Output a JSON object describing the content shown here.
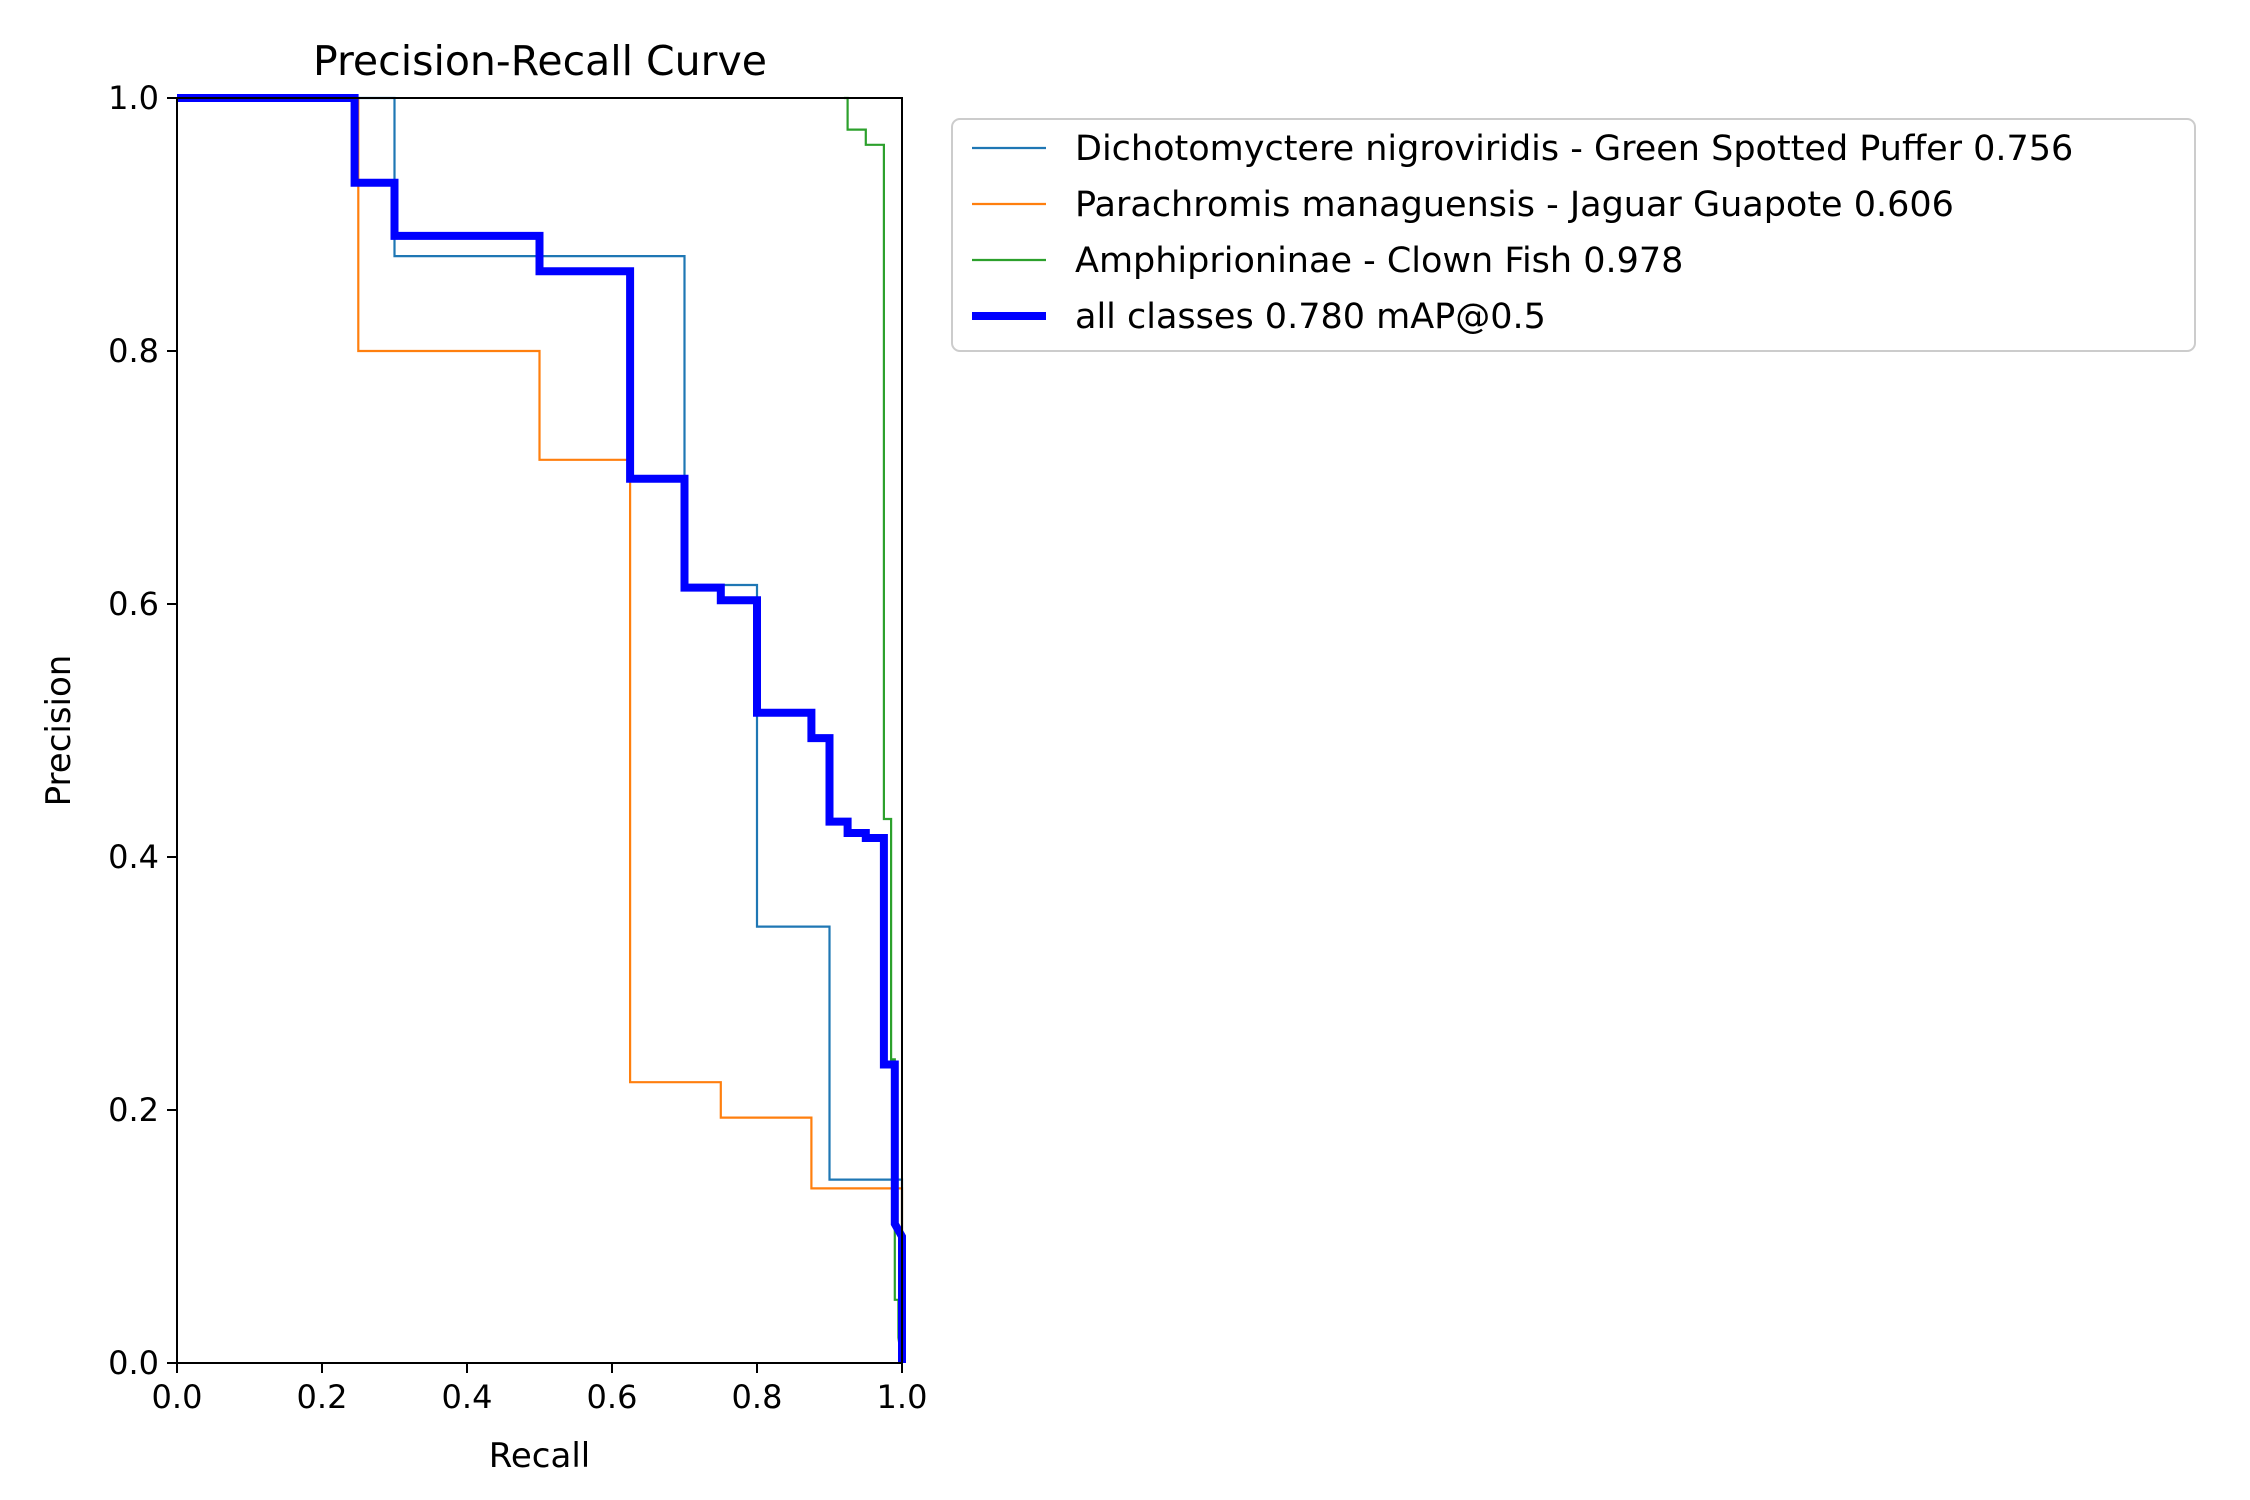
{
  "chart_data": {
    "type": "line",
    "title": "Precision-Recall Curve",
    "xlabel": "Recall",
    "ylabel": "Precision",
    "xlim": [
      0,
      1
    ],
    "ylim": [
      0,
      1
    ],
    "xticks": [
      "0.0",
      "0.2",
      "0.4",
      "0.6",
      "0.8",
      "1.0"
    ],
    "yticks": [
      "0.0",
      "0.2",
      "0.4",
      "0.6",
      "0.8",
      "1.0"
    ],
    "grid": false,
    "legend_position": "outside-right-top",
    "series": [
      {
        "name": "Dichotomyctere nigroviridis - Green Spotted Puffer 0.756",
        "color": "#1f77b4",
        "width": "thin",
        "x": [
          0,
          0.3,
          0.3,
          0.7,
          0.7,
          0.8,
          0.8,
          0.9,
          0.9,
          1.0,
          1.0
        ],
        "y": [
          1.0,
          1.0,
          0.875,
          0.875,
          0.615,
          0.615,
          0.345,
          0.345,
          0.145,
          0.145,
          0.0
        ]
      },
      {
        "name": "Parachromis managuensis - Jaguar Guapote 0.606",
        "color": "#ff7f0e",
        "width": "thin",
        "x": [
          0,
          0.25,
          0.25,
          0.5,
          0.5,
          0.625,
          0.625,
          0.75,
          0.75,
          0.875,
          0.875,
          1.0,
          1.0
        ],
        "y": [
          1.0,
          1.0,
          0.8,
          0.8,
          0.714,
          0.714,
          0.222,
          0.222,
          0.194,
          0.194,
          0.138,
          0.138,
          0.0
        ]
      },
      {
        "name": "Amphiprioninae - Clown Fish 0.978",
        "color": "#2ca02c",
        "width": "thin",
        "x": [
          0.92,
          0.925,
          0.925,
          0.95,
          0.95,
          0.975,
          0.975,
          0.985,
          0.985,
          0.99,
          0.99,
          0.995,
          0.995,
          1.0
        ],
        "y": [
          1.0,
          1.0,
          0.975,
          0.975,
          0.963,
          0.963,
          0.43,
          0.43,
          0.24,
          0.24,
          0.05,
          0.05,
          0.02,
          0.0
        ]
      },
      {
        "name": "all classes 0.780 mAP@0.5",
        "color": "#0000ff",
        "width": "thick",
        "x": [
          0,
          0.245,
          0.245,
          0.3,
          0.3,
          0.5,
          0.5,
          0.625,
          0.625,
          0.7,
          0.7,
          0.75,
          0.75,
          0.8,
          0.8,
          0.875,
          0.875,
          0.9,
          0.9,
          0.925,
          0.925,
          0.95,
          0.95,
          0.975,
          0.975,
          0.99,
          0.99,
          1.0,
          1.0
        ],
        "y": [
          1.0,
          1.0,
          0.933,
          0.933,
          0.891,
          0.891,
          0.863,
          0.863,
          0.699,
          0.699,
          0.613,
          0.613,
          0.603,
          0.603,
          0.514,
          0.514,
          0.494,
          0.494,
          0.428,
          0.428,
          0.419,
          0.419,
          0.415,
          0.415,
          0.236,
          0.236,
          0.11,
          0.1,
          0.0
        ]
      }
    ]
  }
}
